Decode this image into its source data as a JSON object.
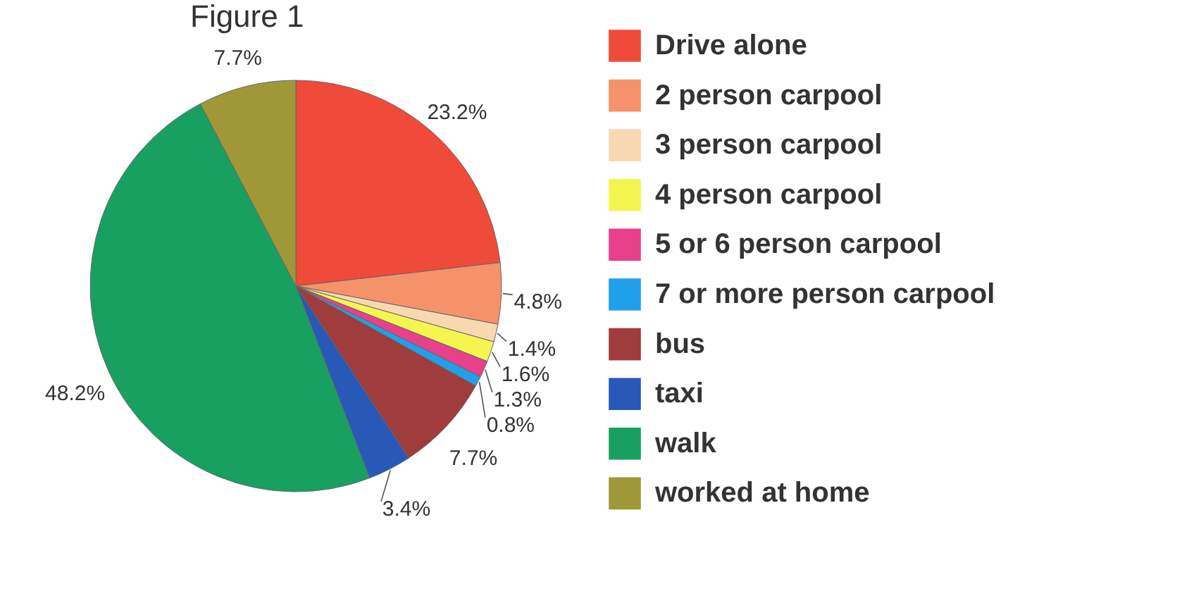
{
  "chart_data": {
    "type": "pie",
    "title": "Figure 1",
    "categories": [
      "Drive alone",
      "2 person carpool",
      "3 person carpool",
      "4 person carpool",
      "5 or 6 person carpool",
      "7 or more person carpool",
      "bus",
      "taxi",
      "walk",
      "worked at home"
    ],
    "values": [
      23.2,
      4.8,
      1.4,
      1.6,
      1.3,
      0.8,
      7.7,
      3.4,
      48.2,
      7.7
    ],
    "value_labels": [
      "23.2%",
      "4.8%",
      "1.4%",
      "1.6%",
      "1.3%",
      "0.8%",
      "7.7%",
      "3.4%",
      "48.2%",
      "7.7%"
    ],
    "colors": [
      "#f04a3a",
      "#f5926a",
      "#f8d8b0",
      "#f5f550",
      "#e8408a",
      "#20a0e8",
      "#a03c3c",
      "#2858b8",
      "#18a060",
      "#a09838"
    ],
    "legend": "right"
  }
}
